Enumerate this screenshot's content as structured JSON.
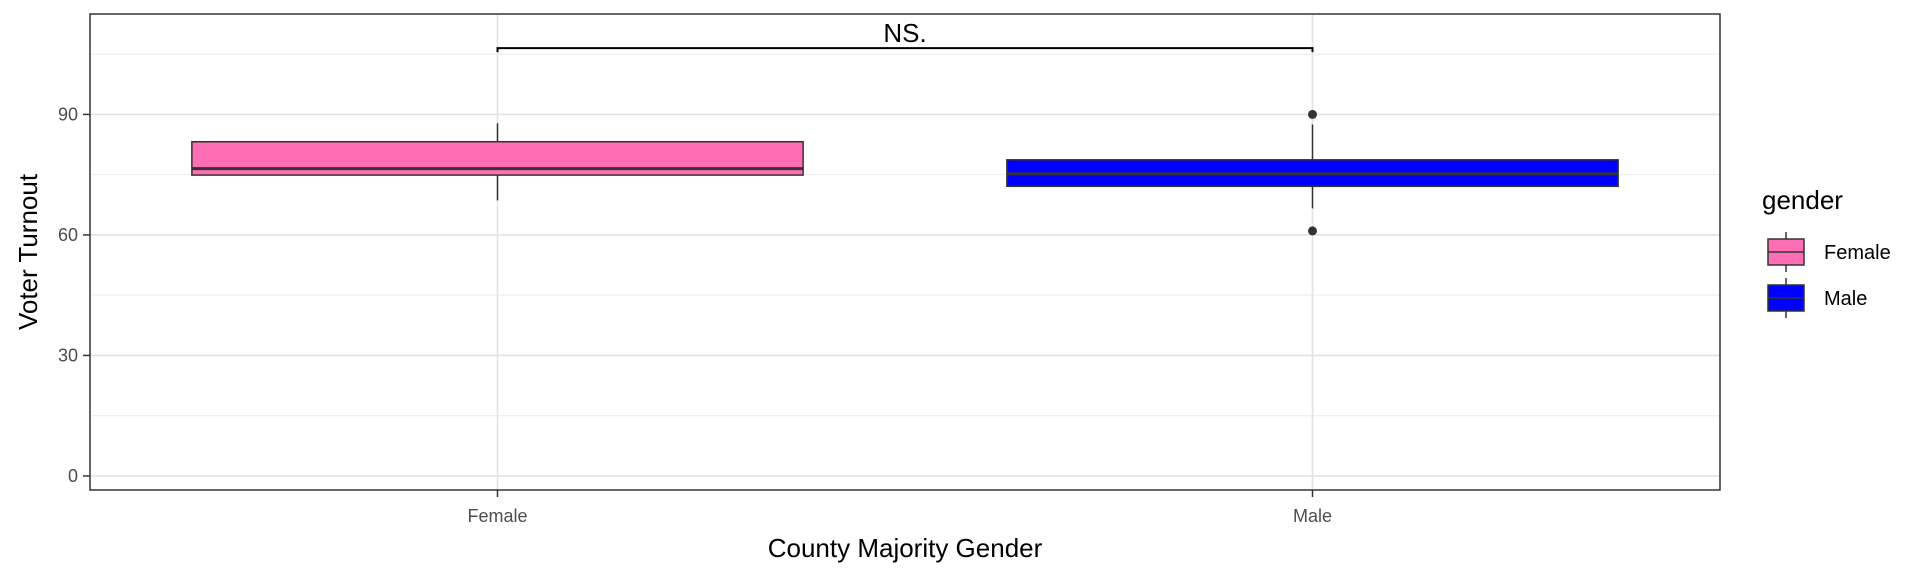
{
  "chart_data": {
    "type": "boxplot",
    "xlabel": "County Majority Gender",
    "ylabel": "Voter Turnout",
    "categories": [
      "Female",
      "Male"
    ],
    "ylim": [
      -3.5,
      115
    ],
    "yticks": [
      0,
      30,
      60,
      90
    ],
    "grid": true,
    "boxes": [
      {
        "category": "Female",
        "fill": "#ff6eb4",
        "min": 68.6,
        "q1": 74.9,
        "median": 76.5,
        "q3": 83.2,
        "max": 87.8,
        "outliers": []
      },
      {
        "category": "Male",
        "fill": "#0000ff",
        "min": 66.6,
        "q1": 72.1,
        "median": 75.2,
        "q3": 78.7,
        "max": 87.5,
        "outliers": [
          90.0,
          61.0
        ]
      }
    ],
    "annotation": {
      "label": "NS.",
      "y": 106.5,
      "from": "Female",
      "to": "Male"
    },
    "legend": {
      "title": "gender",
      "position": "right",
      "entries": [
        {
          "label": "Female",
          "color": "#ff6eb4"
        },
        {
          "label": "Male",
          "color": "#0000ff"
        }
      ]
    }
  }
}
